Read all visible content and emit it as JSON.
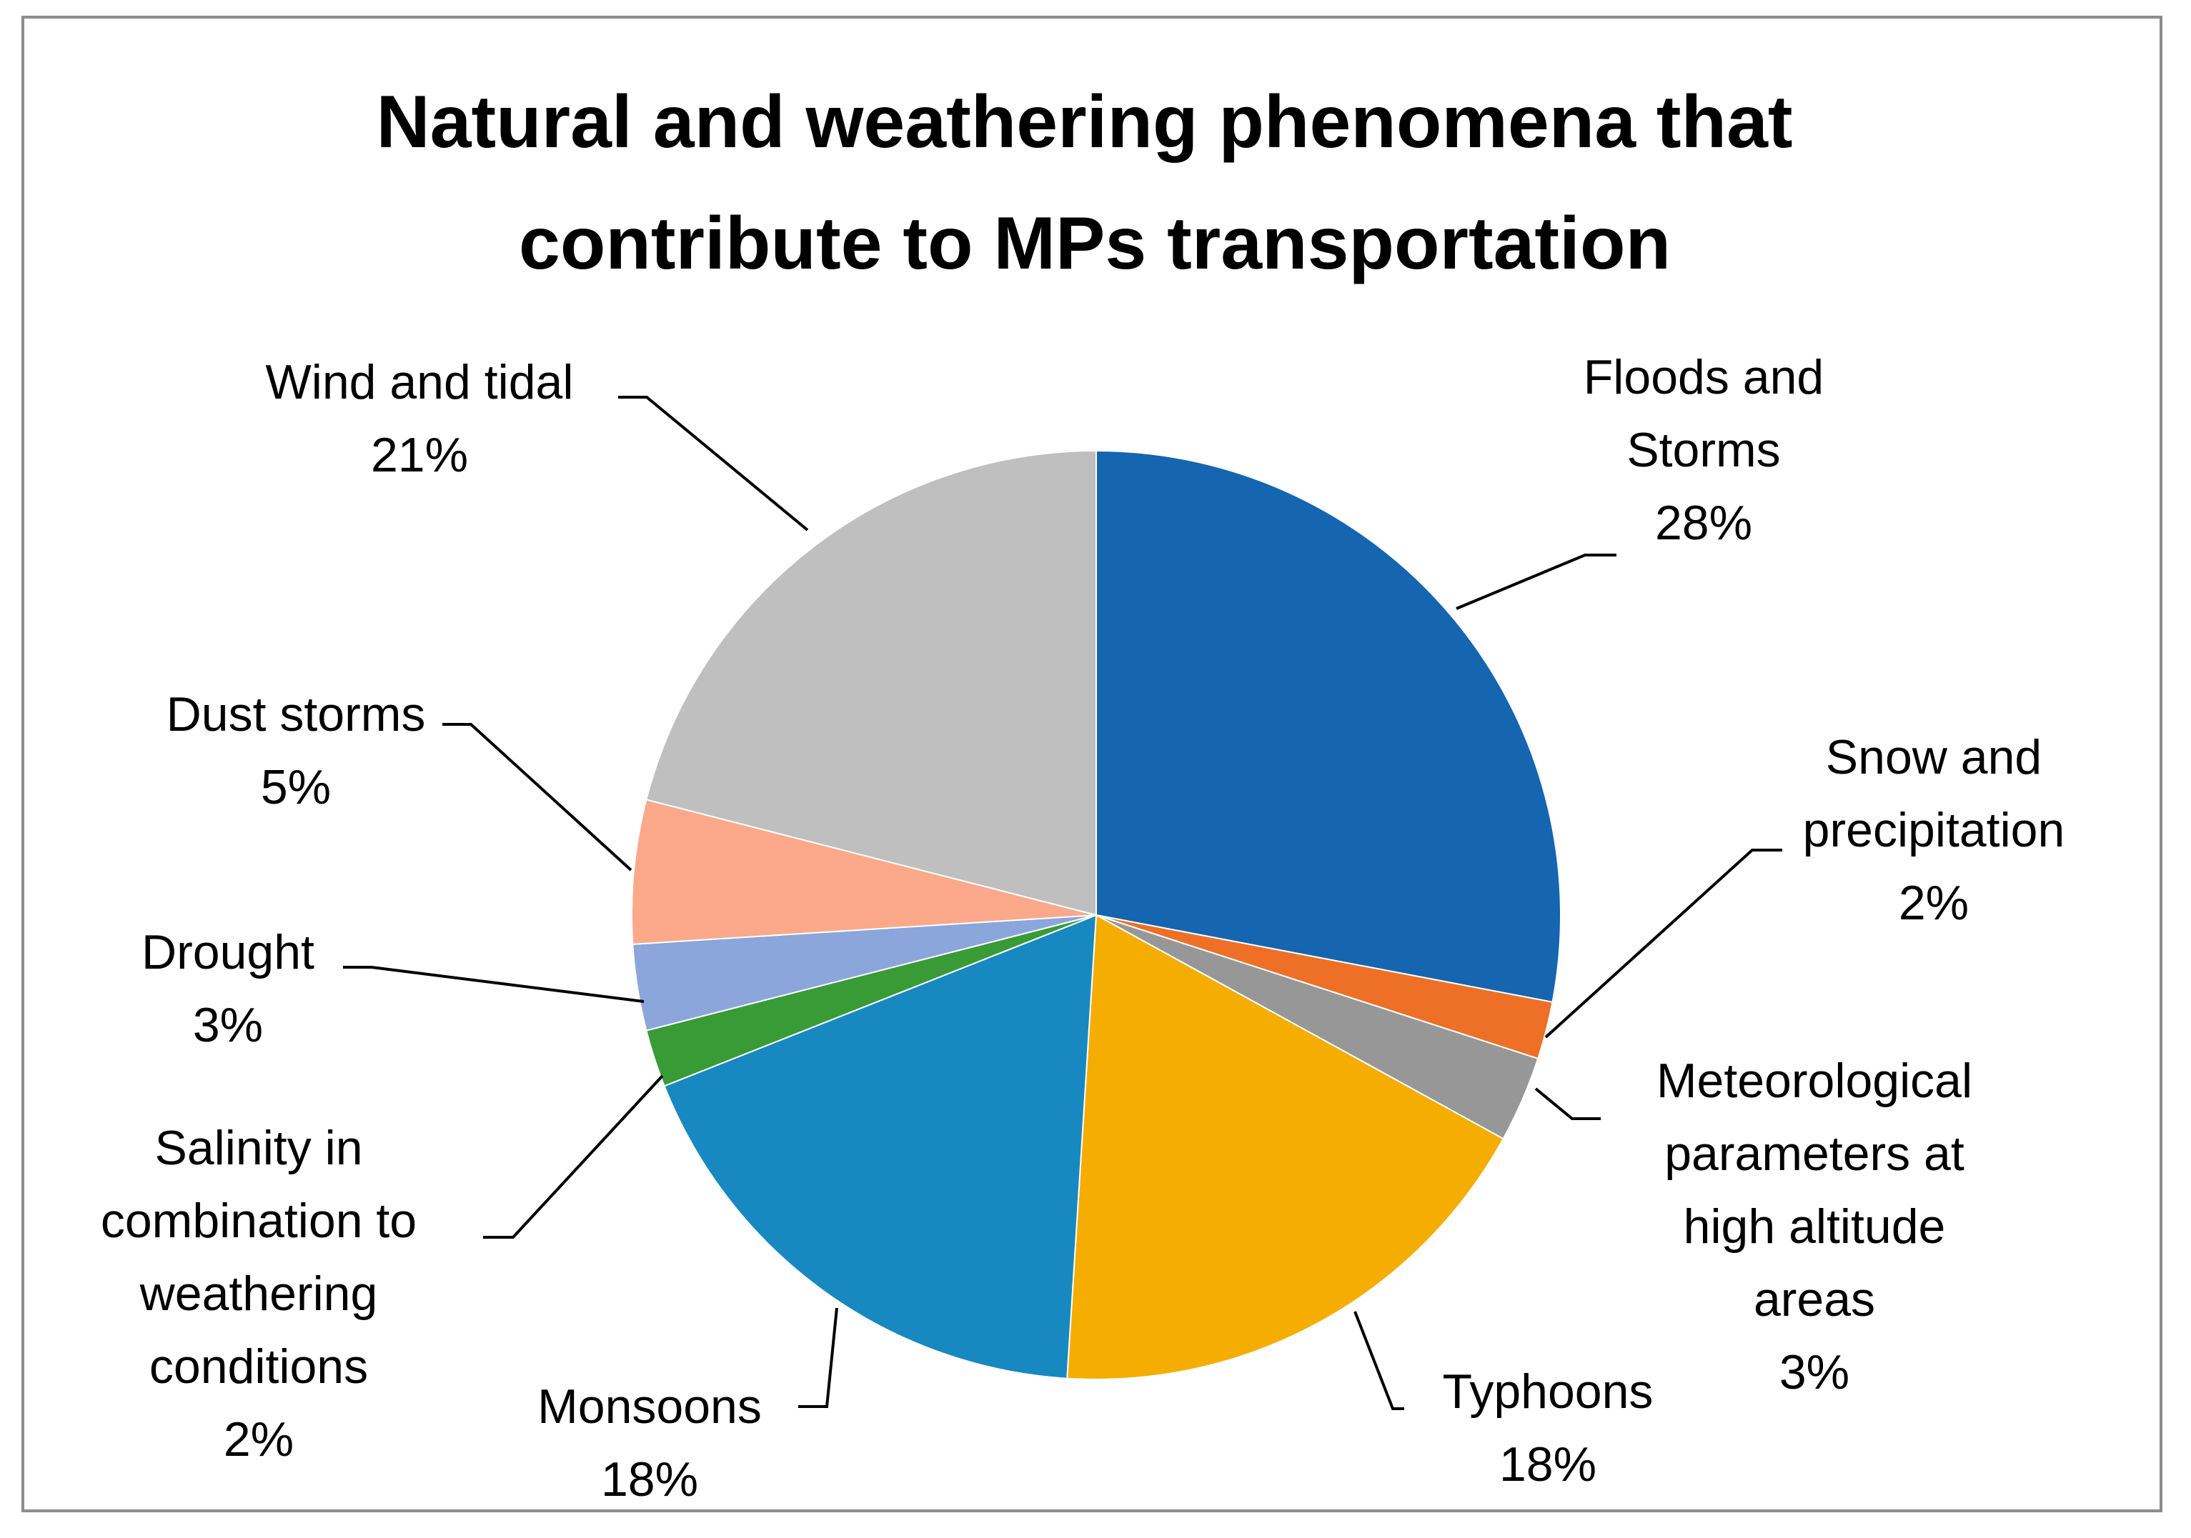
{
  "chart_data": {
    "type": "pie",
    "title_lines": [
      "Natural and weathering phenomena that",
      "contribute to MPs transportation"
    ],
    "unit": "%",
    "start_angle_deg": 0,
    "direction": "clockwise",
    "slices": [
      {
        "label_lines": [
          "Floods and",
          "Storms"
        ],
        "value": 28,
        "value_label": "28%",
        "color": "#1565b0"
      },
      {
        "label_lines": [
          "Snow and",
          "precipitation"
        ],
        "value": 2,
        "value_label": "2%",
        "color": "#ed7026"
      },
      {
        "label_lines": [
          "Meteorological",
          "parameters at",
          "high altitude",
          "areas"
        ],
        "value": 3,
        "value_label": "3%",
        "color": "#979797"
      },
      {
        "label_lines": [
          "Typhoons"
        ],
        "value": 18,
        "value_label": "18%",
        "color": "#f4ad00"
      },
      {
        "label_lines": [
          "Monsoons"
        ],
        "value": 18,
        "value_label": "18%",
        "color": "#1789c0"
      },
      {
        "label_lines": [
          "Salinity in",
          "combination to",
          "weathering",
          "conditions"
        ],
        "value": 2,
        "value_label": "2%",
        "color": "#399b35"
      },
      {
        "label_lines": [
          "Drought"
        ],
        "value": 3,
        "value_label": "3%",
        "color": "#8aa6da"
      },
      {
        "label_lines": [
          "Dust storms"
        ],
        "value": 5,
        "value_label": "5%",
        "color": "#fba98a"
      },
      {
        "label_lines": [
          "Wind and tidal"
        ],
        "value": 21,
        "value_label": "21%",
        "color": "#bfbfbf"
      }
    ]
  }
}
